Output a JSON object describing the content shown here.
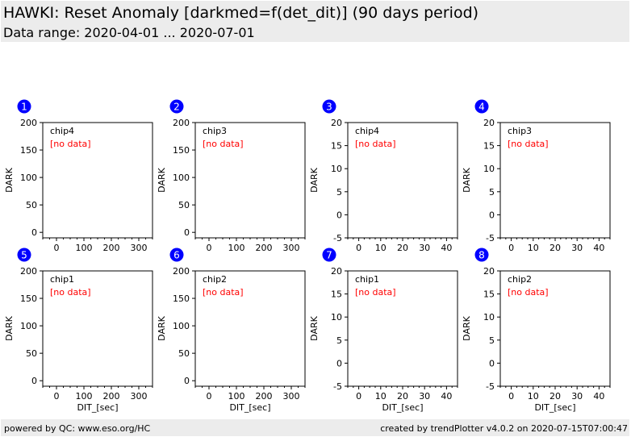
{
  "header": {
    "title": "HAWKI: Reset Anomaly [darkmed=f(det_dit)] (90 days period)",
    "subtitle": "Data range: 2020-04-01 ... 2020-07-01"
  },
  "footer": {
    "left": "powered by QC: www.eso.org/HC",
    "right": "created by trendPlotter v4.0.2 on 2020-07-15T07:00:47"
  },
  "colors": {
    "badge": "#0000ff",
    "no_data": "#ff0000",
    "header_bg": "#ececec"
  },
  "chart_data": [
    {
      "type": "scatter",
      "panel": "1",
      "label": "chip4",
      "note": "[no data]",
      "ylabel": "DARK",
      "xlabel": "",
      "xlim": [
        -50,
        350
      ],
      "ylim": [
        -10,
        200
      ],
      "xticks": [
        0,
        100,
        200,
        300
      ],
      "yticks": [
        0,
        50,
        100,
        150,
        200
      ],
      "series": []
    },
    {
      "type": "scatter",
      "panel": "2",
      "label": "chip3",
      "note": "[no data]",
      "ylabel": "DARK",
      "xlabel": "",
      "xlim": [
        -50,
        350
      ],
      "ylim": [
        -10,
        200
      ],
      "xticks": [
        0,
        100,
        200,
        300
      ],
      "yticks": [
        0,
        50,
        100,
        150,
        200
      ],
      "series": []
    },
    {
      "type": "scatter",
      "panel": "3",
      "label": "chip4",
      "note": "[no data]",
      "ylabel": "DARK",
      "xlabel": "",
      "xlim": [
        -5,
        45
      ],
      "ylim": [
        -5,
        20
      ],
      "xticks": [
        0,
        10,
        20,
        30,
        40
      ],
      "yticks": [
        -5,
        0,
        5,
        10,
        15,
        20
      ],
      "series": []
    },
    {
      "type": "scatter",
      "panel": "4",
      "label": "chip3",
      "note": "[no data]",
      "ylabel": "DARK",
      "xlabel": "",
      "xlim": [
        -5,
        45
      ],
      "ylim": [
        -5,
        20
      ],
      "xticks": [
        0,
        10,
        20,
        30,
        40
      ],
      "yticks": [
        -5,
        0,
        5,
        10,
        15,
        20
      ],
      "series": []
    },
    {
      "type": "scatter",
      "panel": "5",
      "label": "chip1",
      "note": "[no data]",
      "ylabel": "DARK",
      "xlabel": "DIT_[sec]",
      "xlim": [
        -50,
        350
      ],
      "ylim": [
        -10,
        200
      ],
      "xticks": [
        0,
        100,
        200,
        300
      ],
      "yticks": [
        0,
        50,
        100,
        150,
        200
      ],
      "series": []
    },
    {
      "type": "scatter",
      "panel": "6",
      "label": "chip2",
      "note": "[no data]",
      "ylabel": "DARK",
      "xlabel": "DIT_[sec]",
      "xlim": [
        -50,
        350
      ],
      "ylim": [
        -10,
        200
      ],
      "xticks": [
        0,
        100,
        200,
        300
      ],
      "yticks": [
        0,
        50,
        100,
        150,
        200
      ],
      "series": []
    },
    {
      "type": "scatter",
      "panel": "7",
      "label": "chip1",
      "note": "[no data]",
      "ylabel": "DARK",
      "xlabel": "DIT_[sec]",
      "xlim": [
        -5,
        45
      ],
      "ylim": [
        -5,
        20
      ],
      "xticks": [
        0,
        10,
        20,
        30,
        40
      ],
      "yticks": [
        -5,
        0,
        5,
        10,
        15,
        20
      ],
      "series": []
    },
    {
      "type": "scatter",
      "panel": "8",
      "label": "chip2",
      "note": "[no data]",
      "ylabel": "DARK",
      "xlabel": "DIT_[sec]",
      "xlim": [
        -5,
        45
      ],
      "ylim": [
        -5,
        20
      ],
      "xticks": [
        0,
        10,
        20,
        30,
        40
      ],
      "yticks": [
        -5,
        0,
        5,
        10,
        15,
        20
      ],
      "series": []
    }
  ]
}
